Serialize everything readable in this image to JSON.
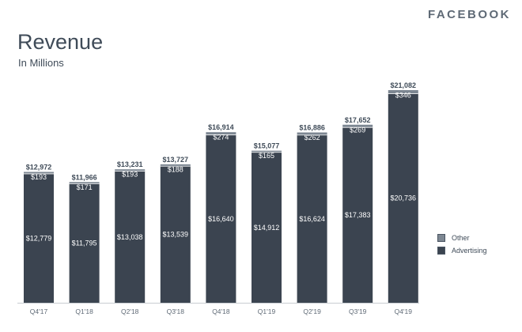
{
  "brand": "FACEBOOK",
  "chart_data": {
    "type": "bar",
    "stacked": true,
    "title": "Revenue",
    "subtitle": "In Millions",
    "categories": [
      "Q4'17",
      "Q1'18",
      "Q2'18",
      "Q3'18",
      "Q4'18",
      "Q1'19",
      "Q2'19",
      "Q3'19",
      "Q4'19"
    ],
    "series": [
      {
        "name": "Advertising",
        "color": "#3b4450",
        "values": [
          12779,
          11795,
          13038,
          13539,
          16640,
          14912,
          16624,
          17383,
          20736
        ],
        "labels": [
          "$12,779",
          "$11,795",
          "$13,038",
          "$13,539",
          "$16,640",
          "$14,912",
          "$16,624",
          "$17,383",
          "$20,736"
        ]
      },
      {
        "name": "Other",
        "color": "#7d8792",
        "values": [
          193,
          171,
          193,
          188,
          274,
          165,
          262,
          269,
          346
        ],
        "labels": [
          "$193",
          "$171",
          "$193",
          "$188",
          "$274",
          "$165",
          "$262",
          "$269",
          "$346"
        ]
      }
    ],
    "totals": [
      12972,
      11966,
      13231,
      13727,
      16914,
      15077,
      16886,
      17652,
      21082
    ],
    "total_labels": [
      "$12,972",
      "$11,966",
      "$13,231",
      "$13,727",
      "$16,914",
      "$15,077",
      "$16,886",
      "$17,652",
      "$21,082"
    ],
    "ylim": [
      0,
      21082
    ],
    "grid": false,
    "legend_position": "right"
  },
  "legend": [
    {
      "name": "Other",
      "color": "#7d8792"
    },
    {
      "name": "Advertising",
      "color": "#3b4450"
    }
  ]
}
